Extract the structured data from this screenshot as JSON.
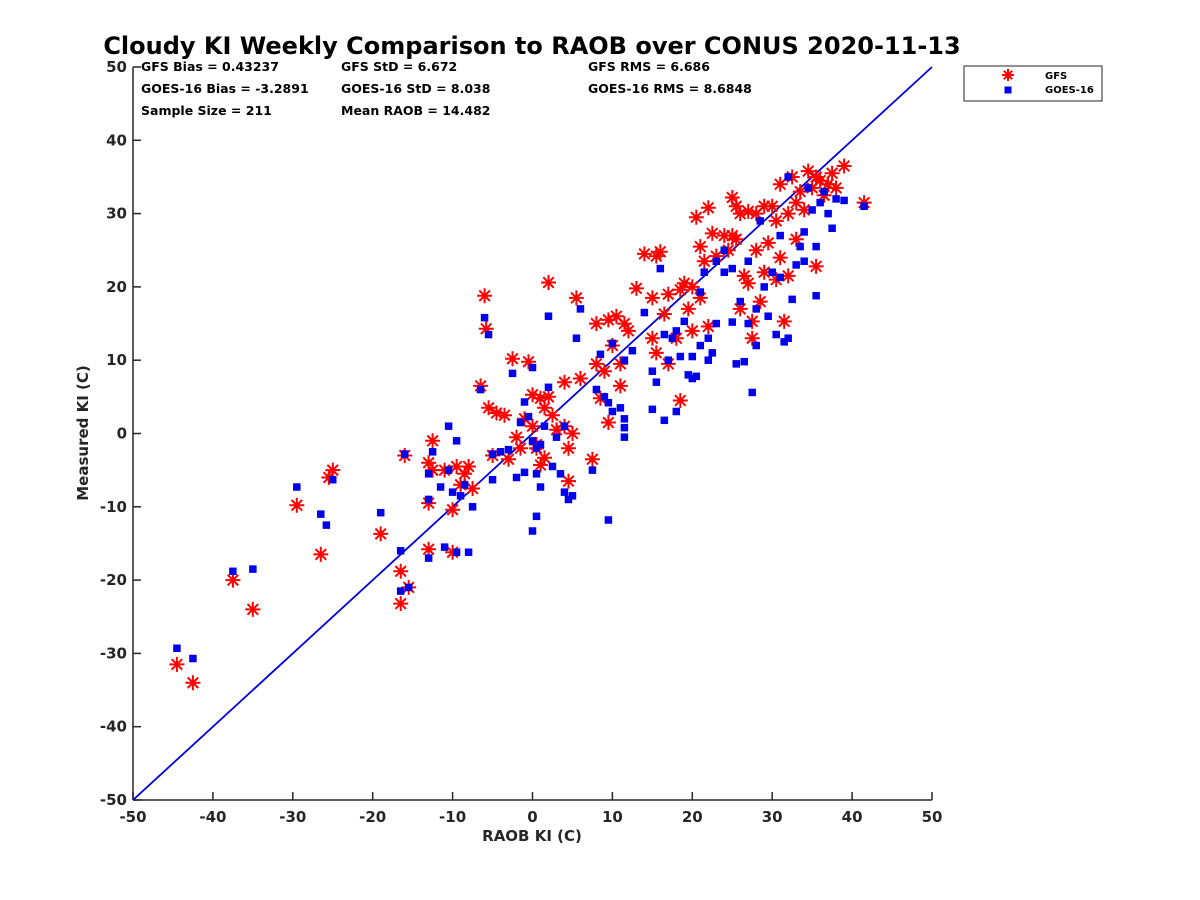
{
  "chart_data": {
    "type": "scatter",
    "title": "Cloudy KI Weekly Comparison to RAOB over CONUS 2020-11-13",
    "xlabel": "RAOB KI (C)",
    "ylabel": "Measured KI (C)",
    "xlim": [
      -50,
      50
    ],
    "ylim": [
      -50,
      50
    ],
    "xticks": [
      "-50",
      "-40",
      "-30",
      "-20",
      "-10",
      "0",
      "10",
      "20",
      "30",
      "40",
      "50"
    ],
    "yticks": [
      "-50",
      "-40",
      "-30",
      "-20",
      "-10",
      "0",
      "10",
      "20",
      "30",
      "40",
      "50"
    ],
    "grid": false,
    "legend_position": "outside-top-right",
    "reference_line": {
      "x": [
        -50,
        50
      ],
      "y": [
        -50,
        50
      ],
      "color": "#0000dd"
    },
    "stats": [
      "GFS Bias = 0.43237",
      "GFS StD = 6.672",
      "GFS RMS = 6.686",
      "GOES-16 Bias = -3.2891",
      "GOES-16 StD = 8.038",
      "GOES-16 RMS = 8.6848",
      "Sample Size = 211",
      "Mean RAOB = 14.482"
    ],
    "series": [
      {
        "name": "GFS",
        "marker": "asterisk",
        "color": "#ff0000",
        "points": [
          [
            -44.5,
            -31.5
          ],
          [
            -42.5,
            -34
          ],
          [
            -37.5,
            -20
          ],
          [
            -35,
            -24
          ],
          [
            -29.5,
            -9.8
          ],
          [
            -26.5,
            -16.5
          ],
          [
            -25.5,
            -6
          ],
          [
            -25,
            -5
          ],
          [
            -19,
            -13.7
          ],
          [
            -16.5,
            -18.8
          ],
          [
            -16.5,
            -23.2
          ],
          [
            -16,
            -3
          ],
          [
            -15.5,
            -21
          ],
          [
            -13,
            -15.8
          ],
          [
            -13,
            -9.5
          ],
          [
            -13,
            -4
          ],
          [
            -12.5,
            -1
          ],
          [
            -12.5,
            -5
          ],
          [
            -11,
            -5
          ],
          [
            -10,
            -10.4
          ],
          [
            -10,
            -16.2
          ],
          [
            -9.5,
            -4.5
          ],
          [
            -9,
            -7
          ],
          [
            -8.5,
            -5.5
          ],
          [
            -8,
            -4.5
          ],
          [
            -7.5,
            -7.5
          ],
          [
            -6.5,
            6.5
          ],
          [
            -6,
            18.8
          ],
          [
            -5.8,
            14.3
          ],
          [
            -5.5,
            3.5
          ],
          [
            -5,
            -3
          ],
          [
            -4.5,
            2.8
          ],
          [
            -3.5,
            2.5
          ],
          [
            -3,
            -3.5
          ],
          [
            -2.5,
            10.2
          ],
          [
            -2,
            -0.5
          ],
          [
            -1.5,
            -2
          ],
          [
            -1,
            2
          ],
          [
            -0.5,
            9.8
          ],
          [
            0,
            5.3
          ],
          [
            0,
            1
          ],
          [
            0.5,
            -2
          ],
          [
            0.5,
            -1.5
          ],
          [
            1,
            -4.3
          ],
          [
            1,
            4.8
          ],
          [
            1.5,
            -3.3
          ],
          [
            1.5,
            3.5
          ],
          [
            2,
            20.6
          ],
          [
            2,
            5
          ],
          [
            2.5,
            2.5
          ],
          [
            3,
            0.5
          ],
          [
            4,
            7
          ],
          [
            4,
            1
          ],
          [
            4.5,
            -2
          ],
          [
            4.5,
            -6.5
          ],
          [
            5,
            0
          ],
          [
            5.5,
            18.5
          ],
          [
            6,
            7.5
          ],
          [
            7.5,
            -3.5
          ],
          [
            8,
            9.5
          ],
          [
            8,
            15
          ],
          [
            8.5,
            4.8
          ],
          [
            9,
            8.5
          ],
          [
            9.5,
            1.5
          ],
          [
            9.5,
            15.5
          ],
          [
            10,
            12
          ],
          [
            10.5,
            16
          ],
          [
            11,
            9.5
          ],
          [
            11,
            6.5
          ],
          [
            11.5,
            15
          ],
          [
            12,
            14
          ],
          [
            13,
            19.8
          ],
          [
            14,
            24.5
          ],
          [
            15,
            13
          ],
          [
            15,
            18.5
          ],
          [
            15.5,
            24.2
          ],
          [
            15.5,
            11
          ],
          [
            16,
            24.8
          ],
          [
            16.5,
            16.3
          ],
          [
            17,
            9.5
          ],
          [
            17,
            19
          ],
          [
            18,
            13
          ],
          [
            18.5,
            4.5
          ],
          [
            18.5,
            19.6
          ],
          [
            19,
            20.5
          ],
          [
            19.5,
            17
          ],
          [
            20,
            14
          ],
          [
            20,
            20
          ],
          [
            20.5,
            29.5
          ],
          [
            21,
            25.5
          ],
          [
            21,
            18.5
          ],
          [
            21.5,
            23.5
          ],
          [
            22,
            30.8
          ],
          [
            22,
            14.6
          ],
          [
            22.5,
            27.3
          ],
          [
            23,
            24.2
          ],
          [
            24,
            27
          ],
          [
            24.5,
            25
          ],
          [
            25,
            32.2
          ],
          [
            25,
            27
          ],
          [
            25.5,
            31
          ],
          [
            25.5,
            26.5
          ],
          [
            26,
            30
          ],
          [
            26,
            17
          ],
          [
            26.5,
            21.5
          ],
          [
            27,
            30.3
          ],
          [
            27,
            20.5
          ],
          [
            27.5,
            15.3
          ],
          [
            27.5,
            13
          ],
          [
            28,
            25
          ],
          [
            28,
            30
          ],
          [
            28.5,
            18
          ],
          [
            29,
            22
          ],
          [
            29,
            31
          ],
          [
            29.5,
            26
          ],
          [
            30,
            31
          ],
          [
            30.5,
            21
          ],
          [
            30.5,
            29
          ],
          [
            31,
            34
          ],
          [
            31,
            24
          ],
          [
            31.5,
            15.3
          ],
          [
            32,
            30
          ],
          [
            32,
            21.5
          ],
          [
            32.5,
            35
          ],
          [
            33,
            26.5
          ],
          [
            33,
            31.5
          ],
          [
            33.5,
            33
          ],
          [
            34,
            30.5
          ],
          [
            34.5,
            35.8
          ],
          [
            35,
            33.5
          ],
          [
            35.5,
            35
          ],
          [
            35.5,
            22.8
          ],
          [
            36,
            34.5
          ],
          [
            36.5,
            32.5
          ],
          [
            37,
            34
          ],
          [
            37.5,
            35.5
          ],
          [
            38,
            33.5
          ],
          [
            39,
            36.5
          ],
          [
            41.5,
            31.5
          ]
        ]
      },
      {
        "name": "GOES-16",
        "marker": "square",
        "color": "#0000ee",
        "points": [
          [
            -44.5,
            -29.3
          ],
          [
            -42.5,
            -30.7
          ],
          [
            -37.5,
            -18.8
          ],
          [
            -35,
            -18.5
          ],
          [
            -29.5,
            -7.3
          ],
          [
            -26.5,
            -11
          ],
          [
            -25.8,
            -12.5
          ],
          [
            -25,
            -6.3
          ],
          [
            -19,
            -10.8
          ],
          [
            -16.5,
            -16
          ],
          [
            -16.5,
            -21.5
          ],
          [
            -16,
            -2.8
          ],
          [
            -15.5,
            -21
          ],
          [
            -13,
            -17
          ],
          [
            -13,
            -9
          ],
          [
            -13,
            -5.5
          ],
          [
            -12.5,
            -2.5
          ],
          [
            -11.5,
            -7.3
          ],
          [
            -11,
            -15.5
          ],
          [
            -10.5,
            -5
          ],
          [
            -10.5,
            1
          ],
          [
            -10,
            -8
          ],
          [
            -9.5,
            -16.2
          ],
          [
            -9.5,
            -1
          ],
          [
            -9,
            -8.5
          ],
          [
            -8.5,
            -7
          ],
          [
            -8,
            -16.2
          ],
          [
            -7.5,
            -10
          ],
          [
            -6.5,
            6
          ],
          [
            -6,
            15.8
          ],
          [
            -5.5,
            13.5
          ],
          [
            -5,
            -6.3
          ],
          [
            -5,
            -2.8
          ],
          [
            -4,
            -2.5
          ],
          [
            -3,
            -2.2
          ],
          [
            -2.5,
            8.2
          ],
          [
            -2,
            -6
          ],
          [
            -1.5,
            1.5
          ],
          [
            -1,
            4.3
          ],
          [
            -1,
            -5.3
          ],
          [
            -0.5,
            2.3
          ],
          [
            0,
            -13.3
          ],
          [
            0,
            9
          ],
          [
            0,
            -1
          ],
          [
            0.5,
            -11.3
          ],
          [
            0.5,
            -5.5
          ],
          [
            0.5,
            -2
          ],
          [
            1,
            -7.3
          ],
          [
            1,
            -1.5
          ],
          [
            1.5,
            1
          ],
          [
            2,
            16
          ],
          [
            2,
            6.3
          ],
          [
            2.5,
            -4.5
          ],
          [
            3,
            -0.5
          ],
          [
            3.5,
            -5.5
          ],
          [
            4,
            -8
          ],
          [
            4,
            1
          ],
          [
            4.5,
            -9
          ],
          [
            5,
            -8.5
          ],
          [
            5.5,
            13
          ],
          [
            6,
            17
          ],
          [
            7.5,
            -5
          ],
          [
            8,
            6
          ],
          [
            8.5,
            10.8
          ],
          [
            9,
            5
          ],
          [
            9.5,
            4.2
          ],
          [
            9.5,
            -11.8
          ],
          [
            10,
            12.3
          ],
          [
            10,
            3
          ],
          [
            11,
            3.5
          ],
          [
            11.5,
            2
          ],
          [
            11.5,
            0.8
          ],
          [
            11.5,
            -0.5
          ],
          [
            11.5,
            10
          ],
          [
            12.5,
            11.3
          ],
          [
            14,
            16.5
          ],
          [
            15,
            3.3
          ],
          [
            15,
            8.5
          ],
          [
            15.5,
            7
          ],
          [
            16,
            22.5
          ],
          [
            16.5,
            13.5
          ],
          [
            16.5,
            1.8
          ],
          [
            17,
            10
          ],
          [
            17.5,
            13
          ],
          [
            18,
            3
          ],
          [
            18,
            14
          ],
          [
            18.5,
            10.5
          ],
          [
            19,
            15.3
          ],
          [
            19.5,
            8
          ],
          [
            20,
            7.5
          ],
          [
            20,
            10.5
          ],
          [
            20.5,
            7.8
          ],
          [
            21,
            12
          ],
          [
            21,
            19.3
          ],
          [
            21.5,
            22
          ],
          [
            22,
            13
          ],
          [
            22,
            10
          ],
          [
            22.5,
            11
          ],
          [
            23,
            15
          ],
          [
            23,
            23.5
          ],
          [
            24,
            22
          ],
          [
            24,
            25
          ],
          [
            25,
            15.2
          ],
          [
            25,
            22.5
          ],
          [
            25.5,
            9.5
          ],
          [
            26,
            18
          ],
          [
            26.5,
            9.8
          ],
          [
            27,
            15
          ],
          [
            27,
            23.5
          ],
          [
            27.5,
            5.6
          ],
          [
            28,
            12
          ],
          [
            28,
            17
          ],
          [
            28.5,
            29
          ],
          [
            29,
            20
          ],
          [
            29.5,
            16
          ],
          [
            30,
            22
          ],
          [
            30.5,
            13.5
          ],
          [
            31,
            27
          ],
          [
            31,
            21.3
          ],
          [
            31.5,
            12.5
          ],
          [
            32,
            35
          ],
          [
            32,
            13
          ],
          [
            32.5,
            18.3
          ],
          [
            33,
            23
          ],
          [
            33.5,
            25.5
          ],
          [
            34,
            27.5
          ],
          [
            34,
            23.5
          ],
          [
            34.5,
            33.5
          ],
          [
            35,
            30.5
          ],
          [
            35.5,
            18.8
          ],
          [
            35.5,
            25.5
          ],
          [
            36,
            31.5
          ],
          [
            36.5,
            33
          ],
          [
            37,
            30
          ],
          [
            37.5,
            28
          ],
          [
            38,
            32
          ],
          [
            39,
            31.8
          ],
          [
            41.5,
            31
          ]
        ]
      }
    ]
  }
}
